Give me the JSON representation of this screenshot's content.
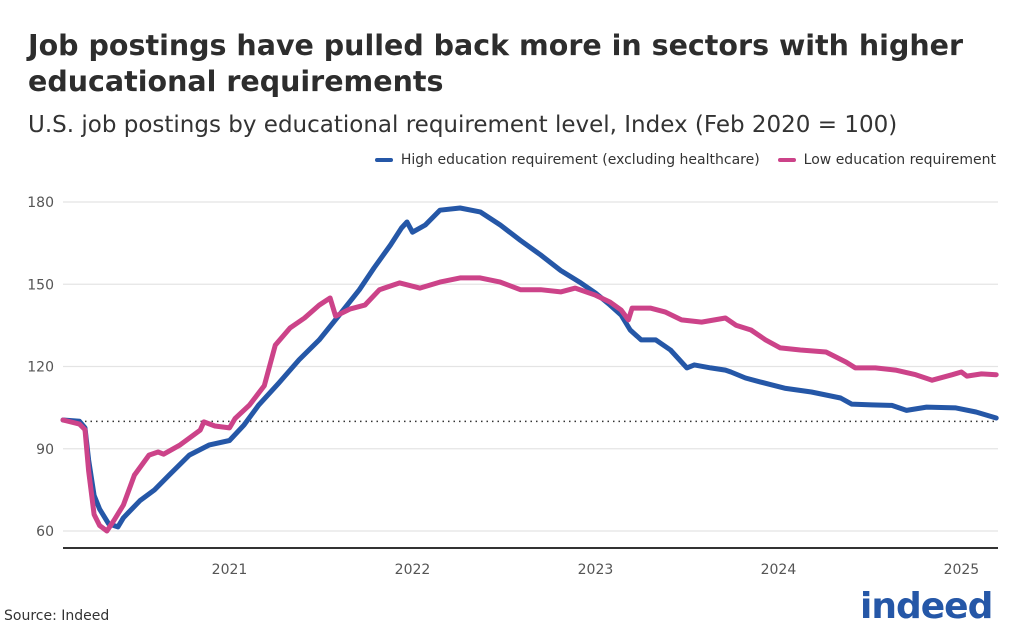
{
  "title": "Job postings have pulled back more in sectors with higher educational requirements",
  "subtitle": "U.S. job postings by educational requirement level, Index (Feb 2020 = 100)",
  "source": "Source: Indeed",
  "logo": "indeed",
  "chart_data": {
    "type": "line",
    "title": "Job postings have pulled back more in sectors with higher educational requirements",
    "subtitle": "U.S. job postings by educational requirement level, Index (Feb 2020 = 100)",
    "xlabel": "",
    "ylabel": "",
    "xlim": [
      2020.09,
      2025.2
    ],
    "ylim": [
      60,
      180
    ],
    "x_ticks": [
      "2021",
      "2022",
      "2023",
      "2024",
      "2025"
    ],
    "y_ticks": [
      "60",
      "90",
      "120",
      "150",
      "180"
    ],
    "reference_line": 100,
    "grid": "horizontal",
    "legend_placement": "top-right",
    "series": [
      {
        "name": "High education requirement (excluding healthcare)",
        "color": "#2557a7",
        "x": [
          2020.09,
          2020.18,
          2020.21,
          2020.23,
          2020.26,
          2020.29,
          2020.34,
          2020.39,
          2020.42,
          2020.51,
          2020.59,
          2020.67,
          2020.78,
          2020.89,
          2021.0,
          2021.08,
          2021.16,
          2021.27,
          2021.38,
          2021.49,
          2021.6,
          2021.71,
          2021.79,
          2021.88,
          2021.94,
          2021.97,
          2022.0,
          2022.07,
          2022.15,
          2022.26,
          2022.37,
          2022.48,
          2022.59,
          2022.7,
          2022.81,
          2022.92,
          2023.0,
          2023.08,
          2023.14,
          2023.19,
          2023.25,
          2023.33,
          2023.41,
          2023.5,
          2023.54,
          2023.63,
          2023.71,
          2023.74,
          2023.82,
          2023.9,
          2024.04,
          2024.18,
          2024.34,
          2024.4,
          2024.51,
          2024.62,
          2024.7,
          2024.81,
          2024.97,
          2025.08,
          2025.19
        ],
        "y": [
          100.5,
          100,
          97.6,
          86,
          73,
          68,
          62.6,
          61.5,
          64.8,
          71,
          75,
          80.4,
          87.7,
          91.4,
          93,
          98.7,
          106,
          114,
          122.4,
          129.7,
          138.8,
          148,
          156,
          164.3,
          170.5,
          172.7,
          169,
          171.6,
          177,
          177.8,
          176.4,
          171.6,
          166,
          160.7,
          155,
          150.5,
          146.8,
          142.4,
          138.8,
          133.3,
          129.7,
          129.7,
          126,
          119.5,
          120.6,
          119.5,
          118.7,
          118,
          115.8,
          114.4,
          112,
          110.7,
          108.5,
          106.3,
          106,
          105.8,
          104,
          105.2,
          104.9,
          103.4,
          101.2
        ]
      },
      {
        "name": "Low education requirement",
        "color": "#cc4389",
        "x": [
          2020.09,
          2020.18,
          2020.21,
          2020.23,
          2020.26,
          2020.29,
          2020.33,
          2020.37,
          2020.42,
          2020.48,
          2020.56,
          2020.61,
          2020.64,
          2020.73,
          2020.84,
          2020.86,
          2020.92,
          2021.0,
          2021.03,
          2021.11,
          2021.19,
          2021.25,
          2021.33,
          2021.41,
          2021.49,
          2021.55,
          2021.58,
          2021.66,
          2021.74,
          2021.82,
          2021.93,
          2022.04,
          2022.15,
          2022.26,
          2022.37,
          2022.48,
          2022.59,
          2022.7,
          2022.81,
          2022.89,
          2023.0,
          2023.08,
          2023.14,
          2023.18,
          2023.2,
          2023.3,
          2023.38,
          2023.47,
          2023.58,
          2023.71,
          2023.77,
          2023.85,
          2023.93,
          2024.01,
          2024.12,
          2024.26,
          2024.37,
          2024.42,
          2024.53,
          2024.64,
          2024.75,
          2024.84,
          2024.95,
          2025.0,
          2025.03,
          2025.11,
          2025.19
        ],
        "y": [
          100.5,
          99,
          97,
          82,
          66,
          62,
          60,
          64,
          69.5,
          80.4,
          87.7,
          88.8,
          88,
          91.4,
          96.8,
          99.8,
          98.3,
          97.6,
          101,
          106,
          113,
          127.8,
          134,
          137.7,
          142.4,
          145,
          138.4,
          141,
          142.4,
          148,
          150.5,
          148.6,
          150.8,
          152.3,
          152.3,
          150.8,
          148,
          148,
          147.2,
          148.6,
          146,
          143.5,
          140.6,
          137,
          141.3,
          141.3,
          139.9,
          137,
          136.2,
          137.7,
          135,
          133.3,
          129.7,
          126.8,
          126,
          125.3,
          121.6,
          119.5,
          119.5,
          118.7,
          117,
          115,
          117,
          118,
          116.5,
          117.3,
          117
        ]
      }
    ]
  }
}
